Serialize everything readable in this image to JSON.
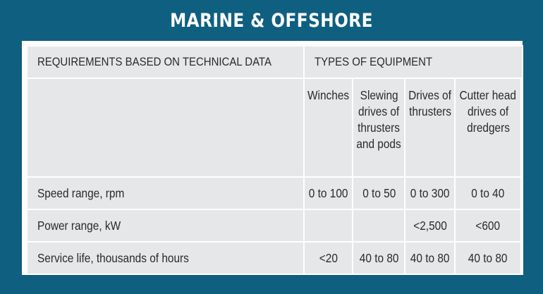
{
  "title": "MARINE & OFFSHORE",
  "table": {
    "header_left": "REQUIREMENTS BASED ON TECHNICAL DATA",
    "header_right": "TYPES OF EQUIPMENT",
    "equipment": [
      {
        "lines": [
          "Winches"
        ]
      },
      {
        "lines": [
          "Slewing",
          "drives of",
          "thrusters",
          "and pods"
        ]
      },
      {
        "lines": [
          "Drives of",
          "thrusters"
        ]
      },
      {
        "lines": [
          "Cutter head",
          "drives of",
          "dredgers"
        ]
      }
    ],
    "rows": [
      {
        "label": "Speed range, rpm",
        "values": [
          "0 to 100",
          "0 to 50",
          "0 to 300",
          "0 to 40"
        ]
      },
      {
        "label": "Power range, kW",
        "values": [
          "",
          "",
          "<2,500",
          "<600"
        ]
      },
      {
        "label": "Service life, thousands of hours",
        "values": [
          "<20",
          "40 to 80",
          "40 to 80",
          "40 to 80"
        ]
      }
    ]
  }
}
